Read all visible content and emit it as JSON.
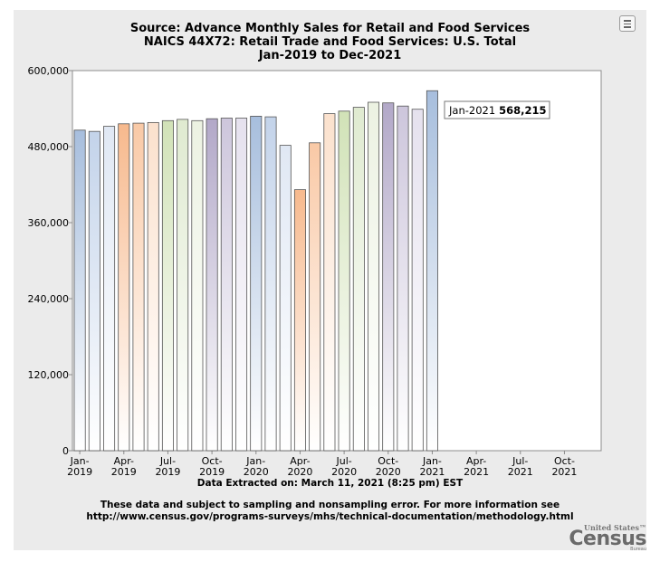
{
  "title": {
    "line1": "Source: Advance Monthly Sales for Retail and Food Services",
    "line2": "NAICS 44X72: Retail Trade and Food Services: U.S. Total",
    "line3": "Jan-2019 to Dec-2021"
  },
  "menu": {
    "icon": "hamburger-menu-icon"
  },
  "chart_data": {
    "type": "bar",
    "ylim": [
      0,
      600000
    ],
    "y_ticks": [
      0,
      120000,
      240000,
      360000,
      480000,
      600000
    ],
    "y_tick_labels": [
      "0",
      "120,000",
      "240,000",
      "360,000",
      "480,000",
      "600,000"
    ],
    "x_slots": 36,
    "x_tick_labels": [
      {
        "slot": 0,
        "line1": "Jan-",
        "line2": "2019"
      },
      {
        "slot": 3,
        "line1": "Apr-",
        "line2": "2019"
      },
      {
        "slot": 6,
        "line1": "Jul-",
        "line2": "2019"
      },
      {
        "slot": 9,
        "line1": "Oct-",
        "line2": "2019"
      },
      {
        "slot": 12,
        "line1": "Jan-",
        "line2": "2020"
      },
      {
        "slot": 15,
        "line1": "Apr-",
        "line2": "2020"
      },
      {
        "slot": 18,
        "line1": "Jul-",
        "line2": "2020"
      },
      {
        "slot": 21,
        "line1": "Oct-",
        "line2": "2020"
      },
      {
        "slot": 24,
        "line1": "Jan-",
        "line2": "2021"
      },
      {
        "slot": 27,
        "line1": "Apr-",
        "line2": "2021"
      },
      {
        "slot": 30,
        "line1": "Jul-",
        "line2": "2021"
      },
      {
        "slot": 33,
        "line1": "Oct-",
        "line2": "2021"
      }
    ],
    "categories": [
      "Jan-2019",
      "Feb-2019",
      "Mar-2019",
      "Apr-2019",
      "May-2019",
      "Jun-2019",
      "Jul-2019",
      "Aug-2019",
      "Sep-2019",
      "Oct-2019",
      "Nov-2019",
      "Dec-2019",
      "Jan-2020",
      "Feb-2020",
      "Mar-2020",
      "Apr-2020",
      "May-2020",
      "Jun-2020",
      "Jul-2020",
      "Aug-2020",
      "Sep-2020",
      "Oct-2020",
      "Nov-2020",
      "Dec-2020",
      "Jan-2021"
    ],
    "values": [
      506000,
      504000,
      512000,
      516000,
      517000,
      518000,
      521000,
      523000,
      521000,
      524000,
      525000,
      525000,
      528000,
      527000,
      482000,
      412000,
      486000,
      532000,
      536000,
      542000,
      550000,
      549000,
      544000,
      539000,
      568215
    ],
    "bar_colors": [
      "#a7bedd",
      "#c3d3ea",
      "#e0e8f4",
      "#f7b98d",
      "#f9c9a6",
      "#fbe1cd",
      "#d1e2b7",
      "#dfead0",
      "#ecf2e2",
      "#b2a8c8",
      "#cdc6dc",
      "#e5e1ee",
      "#a7bedd",
      "#c3d3ea",
      "#e0e8f4",
      "#f7b98d",
      "#f9c9a6",
      "#fbe1cd",
      "#d1e2b7",
      "#dfead0",
      "#ecf2e2",
      "#b2a8c8",
      "#cdc6dc",
      "#e5e1ee",
      "#a7bedd"
    ],
    "grid": false,
    "tooltip": {
      "label": "Jan-2021",
      "value": "568,215"
    }
  },
  "extracted": "Data Extracted on: March 11, 2021 (8:25 pm) EST",
  "footnote": {
    "line1": "These data and subject to sampling and nonsampling error. For more information see",
    "line2": "http://www.census.gov/programs-surveys/mhs/technical-documentation/methodology.html"
  },
  "logo": {
    "top": "United States™",
    "main": "Census",
    "bottom": "Bureau"
  }
}
